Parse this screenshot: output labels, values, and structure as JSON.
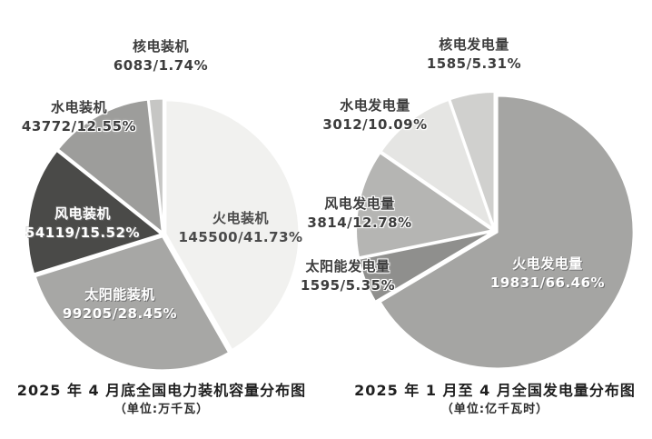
{
  "page": {
    "background": "#ffffff"
  },
  "chart_data": [
    {
      "type": "pie",
      "title": "2025 年 4 月底全国电力装机容量分布图",
      "unit_label": "（单位:万千瓦）",
      "unit": "万千瓦",
      "start_angle_deg": 0,
      "direction": "clockwise",
      "legend_position": "labels-around-pie",
      "slices": [
        {
          "id": "thermal",
          "label": "火电装机",
          "value": 145500,
          "percent": 41.73,
          "value_label": "145500/41.73%",
          "color": "#f1f1ef"
        },
        {
          "id": "solar",
          "label": "太阳能装机",
          "value": 99205,
          "percent": 28.45,
          "value_label": "99205/28.45%",
          "color": "#a7a7a5"
        },
        {
          "id": "wind",
          "label": "风电装机",
          "value": 54119,
          "percent": 15.52,
          "value_label": "54119/15.52%",
          "color": "#4a4a48"
        },
        {
          "id": "hydro",
          "label": "水电装机",
          "value": 43772,
          "percent": 12.55,
          "value_label": "43772/12.55%",
          "color": "#9d9d9b"
        },
        {
          "id": "nuclear",
          "label": "核电装机",
          "value": 6083,
          "percent": 1.74,
          "value_label": "6083/1.74%",
          "color": "#c6c6c4"
        }
      ]
    },
    {
      "type": "pie",
      "title": "2025 年 1 月至 4 月全国发电量分布图",
      "unit_label": "（单位:亿千瓦时）",
      "unit": "亿千瓦时",
      "start_angle_deg": 0,
      "direction": "clockwise",
      "legend_position": "labels-around-pie",
      "slices": [
        {
          "id": "thermal",
          "label": "火电发电量",
          "value": 19831,
          "percent": 66.46,
          "value_label": "19831/66.46%",
          "color": "#a5a5a3"
        },
        {
          "id": "solar",
          "label": "太阳能发电量",
          "value": 1595,
          "percent": 5.35,
          "value_label": "1595/5.35%",
          "color": "#8f8f8d"
        },
        {
          "id": "wind",
          "label": "风电发电量",
          "value": 3814,
          "percent": 12.78,
          "value_label": "3814/12.78%",
          "color": "#b5b5b3"
        },
        {
          "id": "hydro",
          "label": "水电发电量",
          "value": 3012,
          "percent": 10.09,
          "value_label": "3012/10.09%",
          "color": "#e5e5e3"
        },
        {
          "id": "nuclear",
          "label": "核电发电量",
          "value": 1585,
          "percent": 5.31,
          "value_label": "1585/5.31%",
          "color": "#d0d0ce"
        }
      ]
    }
  ]
}
